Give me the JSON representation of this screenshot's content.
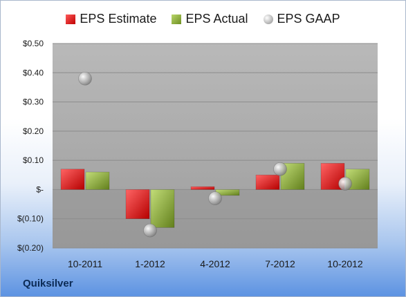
{
  "legend": {
    "estimate": "EPS Estimate",
    "actual": "EPS Actual",
    "gaap": "EPS GAAP"
  },
  "company": "Quiksilver",
  "colors": {
    "estimate": "#d42020",
    "actual": "#8aab3a",
    "gaap": "#b8b8b8",
    "plot_bg": "#b2b2b2"
  },
  "chart_data": {
    "type": "bar",
    "categories": [
      "10-2011",
      "1-2012",
      "4-2012",
      "7-2012",
      "10-2012"
    ],
    "series": [
      {
        "name": "EPS Estimate",
        "values": [
          0.07,
          -0.1,
          0.01,
          0.05,
          0.09
        ]
      },
      {
        "name": "EPS Actual",
        "values": [
          0.06,
          -0.13,
          -0.02,
          0.09,
          0.07
        ]
      },
      {
        "name": "EPS GAAP",
        "type": "scatter",
        "values": [
          0.38,
          -0.14,
          -0.03,
          0.07,
          0.02
        ]
      }
    ],
    "ylim": [
      -0.2,
      0.5
    ],
    "yticks": [
      0.5,
      0.4,
      0.3,
      0.2,
      0.1,
      0,
      -0.1,
      -0.2
    ],
    "ytick_labels": [
      "$0.50",
      "$0.40",
      "$0.30",
      "$0.20",
      "$0.10",
      "$-",
      "$(0.10)",
      "$(0.20)"
    ],
    "grid": true,
    "legend_position": "top"
  }
}
